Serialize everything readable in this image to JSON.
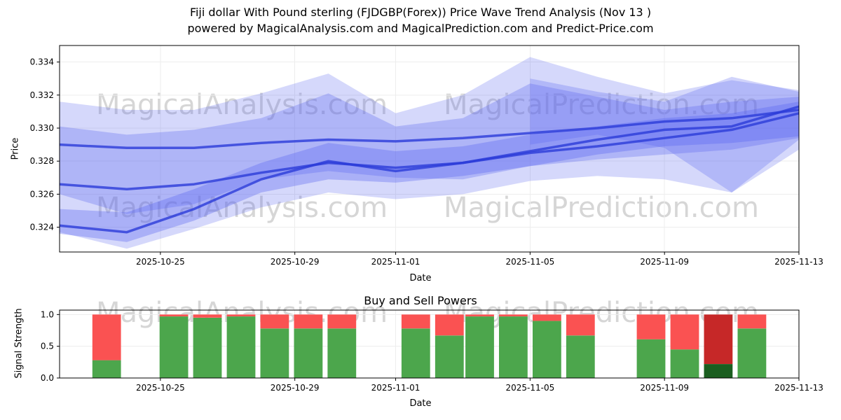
{
  "page": {
    "title_line1": "Fiji dollar With Pound sterling (FJDGBP(Forex)) Price Wave Trend Analysis (Nov 13 )",
    "title_line2": "powered by MagicalAnalysis.com and MagicalPrediction.com and Predict-Price.com"
  },
  "watermarks": {
    "analysis": "MagicalAnalysis.com",
    "prediction": "MagicalPrediction.com"
  },
  "colors": {
    "band_blue": "#5964f0",
    "line_blue": "#2a3bd8",
    "buy_green": "#4ca64c",
    "sell_red": "#fa5252",
    "buy_green_dark": "#1b5e20",
    "sell_red_dark": "#c62828",
    "grid": "#ededed",
    "frame": "#000000",
    "watermark_gray": "#b4b4b4"
  },
  "chart_data": [
    {
      "type": "area",
      "title": "",
      "xlabel": "Date",
      "ylabel": "Price",
      "ylim": [
        0.3225,
        0.335
      ],
      "xlim_days": [
        0,
        22
      ],
      "x_tick_labels": [
        "2025-10-25",
        "2025-10-29",
        "2025-11-01",
        "2025-11-05",
        "2025-11-09",
        "2025-11-13"
      ],
      "x_tick_days": [
        3,
        7,
        10,
        14,
        18,
        22
      ],
      "y_tick_labels": [
        "0.324",
        "0.326",
        "0.328",
        "0.330",
        "0.332",
        "0.334"
      ],
      "y_tick_values": [
        0.324,
        0.326,
        0.328,
        0.33,
        0.332,
        0.334
      ],
      "x_days": [
        0,
        2,
        4,
        6,
        8,
        10,
        12,
        14,
        16,
        18,
        20,
        22
      ],
      "bands": [
        {
          "name": "outer-band",
          "low": [
            0.3237,
            0.3227,
            0.3239,
            0.3252,
            0.3261,
            0.3257,
            0.326,
            0.3268,
            0.3271,
            0.3269,
            0.3261,
            0.3287
          ],
          "high": [
            0.3316,
            0.3311,
            0.3311,
            0.3321,
            0.3333,
            0.3309,
            0.332,
            0.3343,
            0.3331,
            0.3321,
            0.3329,
            0.3323
          ],
          "opacity": 0.25
        },
        {
          "name": "mid-band",
          "low": [
            0.326,
            0.3248,
            0.3254,
            0.3269,
            0.3274,
            0.327,
            0.3269,
            0.3277,
            0.3281,
            0.3284,
            0.3287,
            0.3294
          ],
          "high": [
            0.3301,
            0.3296,
            0.3299,
            0.3306,
            0.3321,
            0.3301,
            0.3306,
            0.3327,
            0.3319,
            0.3311,
            0.3316,
            0.3319
          ],
          "opacity": 0.3
        },
        {
          "name": "trend-band",
          "low": [
            0.3236,
            0.3231,
            0.3244,
            0.3261,
            0.3269,
            0.3267,
            0.3271,
            0.3277,
            0.3284,
            0.3289,
            0.3291,
            0.3295
          ],
          "high": [
            0.3251,
            0.3249,
            0.3263,
            0.3279,
            0.3291,
            0.3286,
            0.3289,
            0.3296,
            0.3301,
            0.3306,
            0.3309,
            0.3316
          ],
          "opacity": 0.34
        }
      ],
      "extra_band": {
        "name": "right-swirl-band",
        "x": [
          14,
          16,
          18,
          20,
          22
        ],
        "low": [
          0.329,
          0.3296,
          0.3288,
          0.3261,
          0.3293
        ],
        "high": [
          0.333,
          0.3322,
          0.3316,
          0.3331,
          0.3322
        ],
        "opacity": 0.28
      },
      "lines": [
        {
          "name": "upper-trend-line",
          "y": [
            0.329,
            0.3288,
            0.3288,
            0.3291,
            0.3293,
            0.3292,
            0.3294,
            0.3297,
            0.33,
            0.3304,
            0.3306,
            0.3311
          ]
        },
        {
          "name": "mid-trend-line",
          "y": [
            0.3266,
            0.3263,
            0.3266,
            0.3273,
            0.3279,
            0.3276,
            0.3279,
            0.3285,
            0.3289,
            0.3294,
            0.3299,
            0.3309
          ]
        },
        {
          "name": "lower-trend-line",
          "y": [
            0.3241,
            0.3237,
            0.3251,
            0.3269,
            0.328,
            0.3274,
            0.3279,
            0.3286,
            0.3293,
            0.3299,
            0.3301,
            0.3313
          ]
        }
      ]
    },
    {
      "type": "bar",
      "title": "Buy and Sell Powers",
      "xlabel": "Date",
      "ylabel": "Signal Strength",
      "ylim": [
        0,
        1.07
      ],
      "xlim_days": [
        0,
        22
      ],
      "x_tick_labels": [
        "2025-10-25",
        "2025-10-29",
        "2025-11-01",
        "2025-11-05",
        "2025-11-09",
        "2025-11-13"
      ],
      "x_tick_days": [
        3,
        7,
        10,
        14,
        18,
        22
      ],
      "y_tick_labels": [
        "0.0",
        "0.5",
        "1.0"
      ],
      "y_tick_values": [
        0.0,
        0.5,
        1.0
      ],
      "bar_width_days": 0.85,
      "bars": [
        {
          "day": 1.4,
          "buy": 0.28,
          "sell": 0.72,
          "highlight": false
        },
        {
          "day": 3.4,
          "buy": 0.97,
          "sell": 0.03,
          "highlight": false
        },
        {
          "day": 4.4,
          "buy": 0.95,
          "sell": 0.05,
          "highlight": false
        },
        {
          "day": 5.4,
          "buy": 0.97,
          "sell": 0.03,
          "highlight": false
        },
        {
          "day": 6.4,
          "buy": 0.78,
          "sell": 0.22,
          "highlight": false
        },
        {
          "day": 7.4,
          "buy": 0.78,
          "sell": 0.22,
          "highlight": false
        },
        {
          "day": 8.4,
          "buy": 0.78,
          "sell": 0.22,
          "highlight": false
        },
        {
          "day": 10.6,
          "buy": 0.78,
          "sell": 0.22,
          "highlight": false
        },
        {
          "day": 11.6,
          "buy": 0.67,
          "sell": 0.33,
          "highlight": false
        },
        {
          "day": 12.5,
          "buy": 0.97,
          "sell": 0.03,
          "highlight": false
        },
        {
          "day": 13.5,
          "buy": 0.97,
          "sell": 0.03,
          "highlight": false
        },
        {
          "day": 14.5,
          "buy": 0.9,
          "sell": 0.1,
          "highlight": false
        },
        {
          "day": 15.5,
          "buy": 0.67,
          "sell": 0.33,
          "highlight": false
        },
        {
          "day": 17.6,
          "buy": 0.61,
          "sell": 0.39,
          "highlight": false
        },
        {
          "day": 18.6,
          "buy": 0.45,
          "sell": 0.55,
          "highlight": false
        },
        {
          "day": 19.6,
          "buy": 0.22,
          "sell": 0.78,
          "highlight": true
        },
        {
          "day": 20.6,
          "buy": 0.78,
          "sell": 0.22,
          "highlight": false
        }
      ]
    }
  ]
}
